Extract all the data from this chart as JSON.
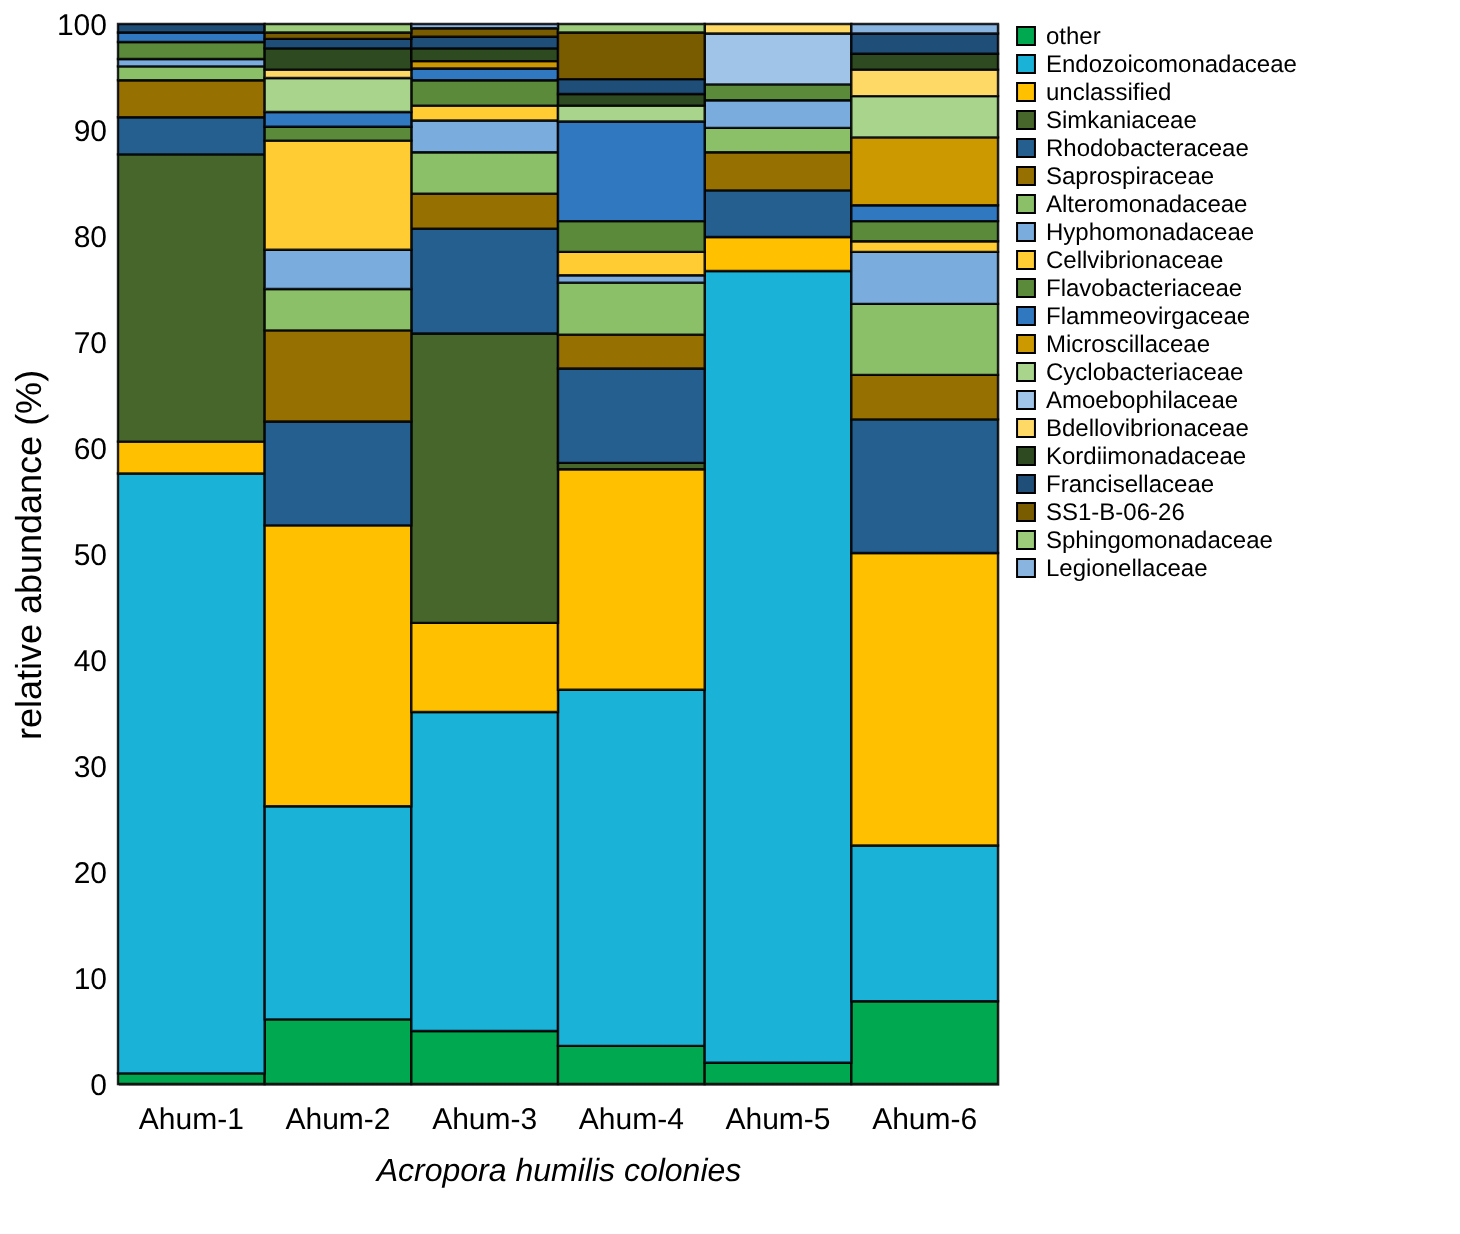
{
  "chart_data": {
    "type": "bar",
    "stacked": true,
    "categories": [
      "Ahum-1",
      "Ahum-2",
      "Ahum-3",
      "Ahum-4",
      "Ahum-5",
      "Ahum-6"
    ],
    "xlabel": "Acropora humilis colonies",
    "ylabel": "relative abundance (%)",
    "ylim": [
      0,
      100
    ],
    "yticks": [
      0,
      10,
      20,
      30,
      40,
      50,
      60,
      70,
      80,
      90,
      100
    ],
    "legend": "top right",
    "series": [
      {
        "name": "other",
        "color": "#00a84f",
        "values": [
          1.0,
          6.1,
          5.0,
          3.6,
          2.0,
          7.8
        ]
      },
      {
        "name": "Endozoicomonadaceae",
        "color": "#1ab2d6",
        "values": [
          56.6,
          20.1,
          30.1,
          33.6,
          74.7,
          14.7
        ]
      },
      {
        "name": "unclassified",
        "color": "#ffc000",
        "values": [
          3.0,
          26.5,
          8.4,
          20.8,
          3.2,
          27.6
        ]
      },
      {
        "name": "Simkaniaceae",
        "color": "#46662b",
        "values": [
          27.1,
          null,
          27.3,
          0.6,
          null,
          null
        ]
      },
      {
        "name": "Rhodobacteraceae",
        "color": "#245f8f",
        "values": [
          3.5,
          9.8,
          9.9,
          8.9,
          4.4,
          12.6
        ]
      },
      {
        "name": "Saprospiraceae",
        "color": "#967000",
        "values": [
          3.5,
          8.6,
          3.3,
          3.2,
          3.6,
          4.2
        ]
      },
      {
        "name": "Alteromonadaceae",
        "color": "#8cc068",
        "values": [
          1.3,
          3.9,
          3.9,
          4.9,
          2.3,
          6.7
        ]
      },
      {
        "name": "Hyphomonadaceae",
        "color": "#7aadde",
        "values": [
          0.7,
          3.7,
          3.0,
          0.7,
          2.6,
          4.9
        ]
      },
      {
        "name": "Cellvibrionaceae",
        "color": "#ffcc33",
        "values": [
          null,
          10.3,
          1.4,
          2.2,
          null,
          1.0
        ]
      },
      {
        "name": "Flavobacteriaceae",
        "color": "#5a8a3a",
        "values": [
          1.6,
          1.3,
          2.4,
          2.9,
          1.5,
          1.9
        ]
      },
      {
        "name": "Flammeovirgaceae",
        "color": "#3079c0",
        "values": [
          0.9,
          1.4,
          1.1,
          9.4,
          null,
          1.5
        ]
      },
      {
        "name": "Microscillaceae",
        "color": "#cc9900",
        "values": [
          null,
          null,
          0.7,
          null,
          null,
          6.4
        ]
      },
      {
        "name": "Cyclobacteriaceae",
        "color": "#a8d48c",
        "values": [
          null,
          3.2,
          null,
          1.5,
          null,
          3.9
        ]
      },
      {
        "name": "Amoebophilaceae",
        "color": "#a0c4e8",
        "values": [
          null,
          null,
          null,
          null,
          4.8,
          null
        ]
      },
      {
        "name": "Bdellovibrionaceae",
        "color": "#ffd966",
        "values": [
          null,
          0.8,
          null,
          null,
          0.9,
          2.5
        ]
      },
      {
        "name": "Kordiimonadaceae",
        "color": "#2e4a20",
        "values": [
          null,
          2.0,
          1.2,
          1.1,
          null,
          1.5
        ]
      },
      {
        "name": "Francisellaceae",
        "color": "#1f4e79",
        "values": [
          0.8,
          0.9,
          1.1,
          1.4,
          null,
          1.9
        ]
      },
      {
        "name": "SS1-B-06-26",
        "color": "#7a5c00",
        "values": [
          null,
          0.6,
          0.8,
          4.4,
          null,
          null
        ]
      },
      {
        "name": "Sphingomonadaceae",
        "color": "#9ccc7a",
        "values": [
          null,
          0.8,
          null,
          0.8,
          null,
          null
        ]
      },
      {
        "name": "Legionellaceae",
        "color": "#8ab4e0",
        "values": [
          null,
          null,
          0.4,
          null,
          null,
          0.9
        ]
      }
    ]
  }
}
